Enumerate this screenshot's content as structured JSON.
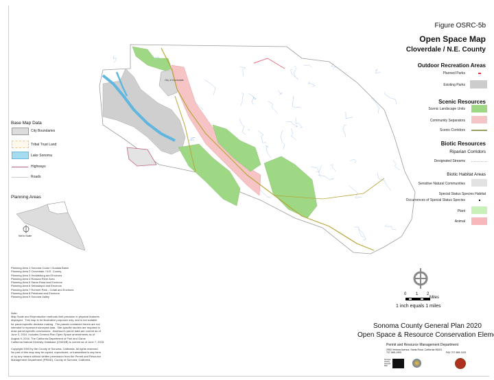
{
  "header": {
    "figure": "Figure OSRC-5b",
    "title": "Open Space Map",
    "subtitle": "Cloverdale / N.E. County"
  },
  "legend_right": {
    "outdoor": {
      "heading": "Outdoor Recreation Areas",
      "items": [
        {
          "label": "Planned Parks",
          "color": "#e0303a"
        },
        {
          "label": "Existing Parks",
          "color": "#cccccc"
        }
      ]
    },
    "scenic": {
      "heading": "Scenic Resources",
      "items": [
        {
          "label": "Scenic Landscape Units",
          "color": "#9fd884"
        },
        {
          "label": "Community Separators",
          "color": "#f7c4c6"
        },
        {
          "label": "Scenic Corridors",
          "color": "#9a9a5a"
        }
      ]
    },
    "biotic": {
      "heading": "Biotic Resources",
      "riparian": "Riparian Corridors",
      "streams": "Designated Streams",
      "habitat_heading": "Biotic Habitat Areas",
      "sensitive": "Sensitive Natural Communities",
      "special": "Special Status Species Habitat",
      "occurrences": "Occurrences of Special Status Species",
      "plant": "Plant",
      "animal": "Animal",
      "plant_color": "#c9f0b8",
      "animal_color": "#f7b8bc"
    }
  },
  "legend_left": {
    "heading": "Base Map Data",
    "items": [
      {
        "label": "City Boundaries",
        "color": "#dddddd"
      },
      {
        "label": "Tribal Trust Land",
        "color": "#fff8ec"
      },
      {
        "label": "Lake Sonoma",
        "color": "#a6dcf0"
      },
      {
        "label": "Highways",
        "color": "#b06070"
      },
      {
        "label": "Roads",
        "color": "#dddddd"
      }
    ]
  },
  "map": {
    "city_label": "City of Cloverdale"
  },
  "planning": {
    "heading": "Planning Areas",
    "not_to_scale": "Not to Scale",
    "areas": [
      "Planning Area 1 Sonoma Coast / Gualala Basin",
      "Planning Area 2 Cloverdale / N.E. County",
      "Planning Area 3 Healdsburg and Environs",
      "Planning Area 4 Russian River Area",
      "Planning Area 5 Santa Rosa and Environs",
      "Planning Area 6 Sebastopol and Environs",
      "Planning Area 7 Rohnert Park - Cotati and Environs",
      "Planning Area 8 Petaluma and Environs",
      "Planning Area 9 Sonoma Valley"
    ]
  },
  "note": {
    "heading": "Note:",
    "text": "Map Scale and Reproduction methods limit precision in physical features\ndisplayed.  This map is for illustrative purposes only, and is not suitable\nfor parcel-specific decision making.  The parcels contained herein are not\nintended to represent surveyed data.  Site-specific studies are required to\ndraw parcel-specific conclusions.  Assessor's parcel data are current as of\nJune 3, 2016. Includes General Plan Open Space amendments as of\nAugust 9, 2016. The California Department of Fish and Game\nCalifornia Natural Diversity Database (CNDDB) is current as of June 7, 2016.",
    "copyright": "Copyright 2003 by the County of Sonoma, California. All rights reserved.\nNo part of this map may be copied, reproduced, or transmitted in any form\nor by any means without written permission from the Permit and Resource\nManagement Department (PRMD), County of Sonoma, California."
  },
  "scale": {
    "ticks": [
      "0",
      "1",
      "2"
    ],
    "unit": "Miles",
    "equivalence": "1 inch equals 1 miles"
  },
  "footer": {
    "title1": "Sonoma County General Plan 2020",
    "title2": "Open Space & Resource Conservation Element",
    "dept": "Permit and Resource Management Department",
    "address": "2550 Ventura Avenue, Santa Rosa, California 95403",
    "phone": "707-565-1900",
    "fax": "FAX 707-565-1103",
    "logo_text": "Sonoma County General Plan"
  }
}
